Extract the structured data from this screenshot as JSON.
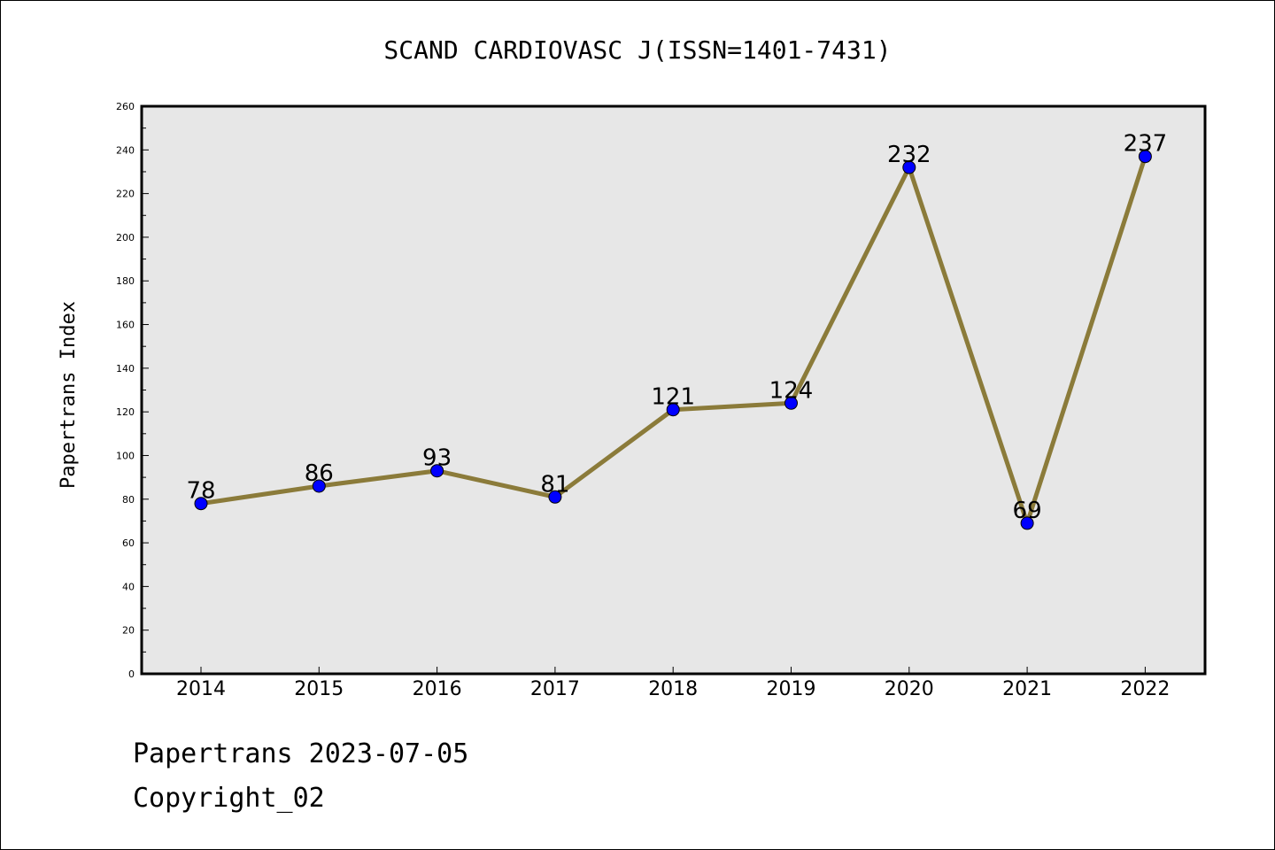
{
  "footer": {
    "line1": "Papertrans 2023-07-05",
    "line2": "Copyright_02"
  },
  "colors": {
    "line": "#8b7b3a",
    "marker": "#0000ff",
    "plot_background": "#e7e7e7"
  },
  "chart_data": {
    "type": "line",
    "title": "SCAND CARDIOVASC J(ISSN=1401-7431)",
    "xlabel": "",
    "ylabel": "Papertrans Index",
    "categories": [
      "2014",
      "2015",
      "2016",
      "2017",
      "2018",
      "2019",
      "2020",
      "2021",
      "2022"
    ],
    "series": [
      {
        "values": [
          78,
          86,
          93,
          81,
          121,
          124,
          232,
          69,
          237
        ]
      }
    ],
    "ylim": [
      0,
      260
    ],
    "yticks": [
      0,
      20,
      40,
      60,
      80,
      100,
      120,
      140,
      160,
      180,
      200,
      220,
      240,
      260
    ],
    "grid": false,
    "legend": "none"
  }
}
